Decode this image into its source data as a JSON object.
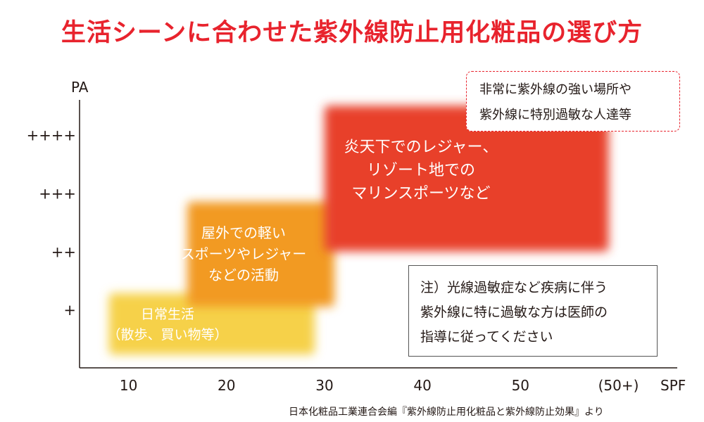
{
  "page": {
    "title": "生活シーンに合わせた紫外線防止用化粧品の選び方",
    "source": "日本化粧品工業連合会編『紫外線防止用化粧品と紫外線防止効果』より"
  },
  "callout": {
    "lines": [
      "非常に紫外線の強い場所や",
      "紫外線に特別過敏な人達等"
    ]
  },
  "note": {
    "lines": [
      "注）光線過敏症など疾病に伴う",
      "紫外線に特に過敏な方は医師の",
      "指導に従ってください"
    ]
  },
  "chart_data": {
    "type": "area",
    "title": "生活シーンに合わせた紫外線防止用化粧品の選び方",
    "xlabel": "SPF",
    "ylabel": "PA",
    "x_ticks": [
      "10",
      "20",
      "30",
      "40",
      "50",
      "(50+)"
    ],
    "y_ticks": [
      "+",
      "++",
      "+++",
      "++++"
    ],
    "xlim": [
      5,
      66
    ],
    "ylim": [
      0,
      4.6
    ],
    "grid": false,
    "zones": [
      {
        "id": "zone-1",
        "lines": [
          "日常生活",
          "（散歩、買い物等）"
        ],
        "spf": [
          8,
          29
        ],
        "pa": [
          0.23,
          1.28
        ],
        "color": "#f6d14a"
      },
      {
        "id": "zone-2",
        "lines": [
          "屋外での軽い",
          "スポーツやレジャー",
          "などの活動"
        ],
        "spf": [
          16,
          31
        ],
        "pa": [
          1.05,
          2.85
        ],
        "color": "#f29a21"
      },
      {
        "id": "zone-3",
        "lines": [
          "炎天下でのレジャー、",
          "リゾート地での",
          "マリンスポーツなど"
        ],
        "spf": [
          30,
          59
        ],
        "pa": [
          2.0,
          4.5
        ],
        "color": "#e8412c"
      }
    ]
  }
}
